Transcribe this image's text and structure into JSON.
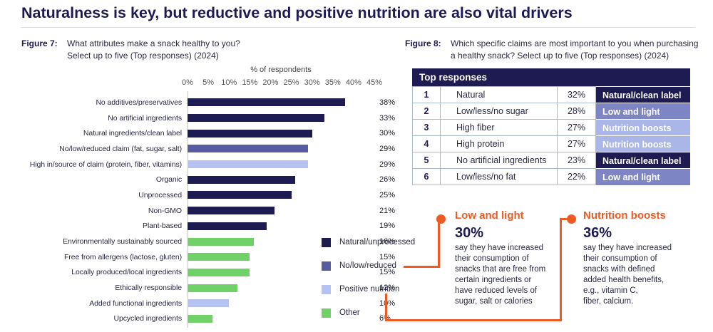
{
  "page": {
    "title": "Naturalness is key, but reductive and positive nutrition are also vital drivers"
  },
  "figure7": {
    "label": "Figure 7:",
    "caption_line1": "What attributes make a snack healthy to you?",
    "caption_line2": "Select up to five (Top responses) (2024)"
  },
  "figure8": {
    "label": "Figure 8:",
    "caption_line1": "Which specific claims are most important to you when purchasing",
    "caption_line2": "a healthy snack? Select up to five (Top responses) (2024)"
  },
  "colors": {
    "natural": "#1e1b52",
    "reduced": "#575b9f",
    "positive": "#b5c2f2",
    "other": "#6fd166",
    "tag_natural": "#1e1b52",
    "tag_lowlight": "#7e85c4",
    "tag_boosts": "#aab5e8",
    "accent_orange": "#ee5a24"
  },
  "chart_data": {
    "type": "bar",
    "orientation": "horizontal",
    "axis_title": "% of respondents",
    "xlim": [
      0,
      45
    ],
    "x_ticks": [
      "0%",
      "5%",
      "10%",
      "15%",
      "20%",
      "25%",
      "30%",
      "35%",
      "40%",
      "45%"
    ],
    "legend_position": "bottom-right",
    "items": [
      {
        "label": "No additives/preservatives",
        "value": 38,
        "display": "38%",
        "group": "natural"
      },
      {
        "label": "No artificial ingredients",
        "value": 33,
        "display": "33%",
        "group": "natural"
      },
      {
        "label": "Natural ingredients/clean label",
        "value": 30,
        "display": "30%",
        "group": "natural"
      },
      {
        "label": "No/low/reduced claim (fat, sugar, salt)",
        "value": 29,
        "display": "29%",
        "group": "reduced"
      },
      {
        "label": "High in/source of claim (protein, fiber, vitamins)",
        "value": 29,
        "display": "29%",
        "group": "positive"
      },
      {
        "label": "Organic",
        "value": 26,
        "display": "26%",
        "group": "natural"
      },
      {
        "label": "Unprocessed",
        "value": 25,
        "display": "25%",
        "group": "natural"
      },
      {
        "label": "Non-GMO",
        "value": 21,
        "display": "21%",
        "group": "natural"
      },
      {
        "label": "Plant-based",
        "value": 19,
        "display": "19%",
        "group": "natural"
      },
      {
        "label": "Environmentally sustainably sourced",
        "value": 16,
        "display": "16%",
        "group": "other"
      },
      {
        "label": "Free from allergens (lactose, gluten)",
        "value": 15,
        "display": "15%",
        "group": "other"
      },
      {
        "label": "Locally produced/local ingredients",
        "value": 15,
        "display": "15%",
        "group": "other"
      },
      {
        "label": "Ethically responsible",
        "value": 12,
        "display": "12%",
        "group": "other"
      },
      {
        "label": "Added functional ingredients",
        "value": 10,
        "display": "10%",
        "group": "positive"
      },
      {
        "label": "Upcycled ingredients",
        "value": 6,
        "display": "6%",
        "group": "other"
      }
    ],
    "legend": [
      {
        "label": "Natural/unprocessed",
        "group": "natural"
      },
      {
        "label": "No/low/reduced",
        "group": "reduced"
      },
      {
        "label": "Positive nutrition",
        "group": "positive"
      },
      {
        "label": "Other",
        "group": "other"
      }
    ]
  },
  "table": {
    "header": "Top responses",
    "rows": [
      {
        "rank": "1",
        "claim": "Natural",
        "pct": "32%",
        "tag": "Natural/clean label",
        "tag_type": "tag_natural"
      },
      {
        "rank": "2",
        "claim": "Low/less/no sugar",
        "pct": "28%",
        "tag": "Low and light",
        "tag_type": "tag_lowlight"
      },
      {
        "rank": "3",
        "claim": "High fiber",
        "pct": "27%",
        "tag": "Nutrition boosts",
        "tag_type": "tag_boosts"
      },
      {
        "rank": "4",
        "claim": "High protein",
        "pct": "27%",
        "tag": "Nutrition boosts",
        "tag_type": "tag_boosts"
      },
      {
        "rank": "5",
        "claim": "No artificial ingredients",
        "pct": "23%",
        "tag": "Natural/clean label",
        "tag_type": "tag_natural"
      },
      {
        "rank": "6",
        "claim": "Low/less/no fat",
        "pct": "22%",
        "tag": "Low and light",
        "tag_type": "tag_lowlight"
      }
    ]
  },
  "callouts": [
    {
      "title": "Low and light",
      "stat": "30%",
      "body": "say they have increased\ntheir consumption of\nsnacks that are free from\ncertain ingredients or\nhave reduced levels of\nsugar, salt or calories"
    },
    {
      "title": "Nutrition boosts",
      "stat": "36%",
      "body": "say they have increased\ntheir consumption of\nsnacks with defined\nadded health benefits,\ne.g., vitamin C,\nfiber, calcium."
    }
  ]
}
